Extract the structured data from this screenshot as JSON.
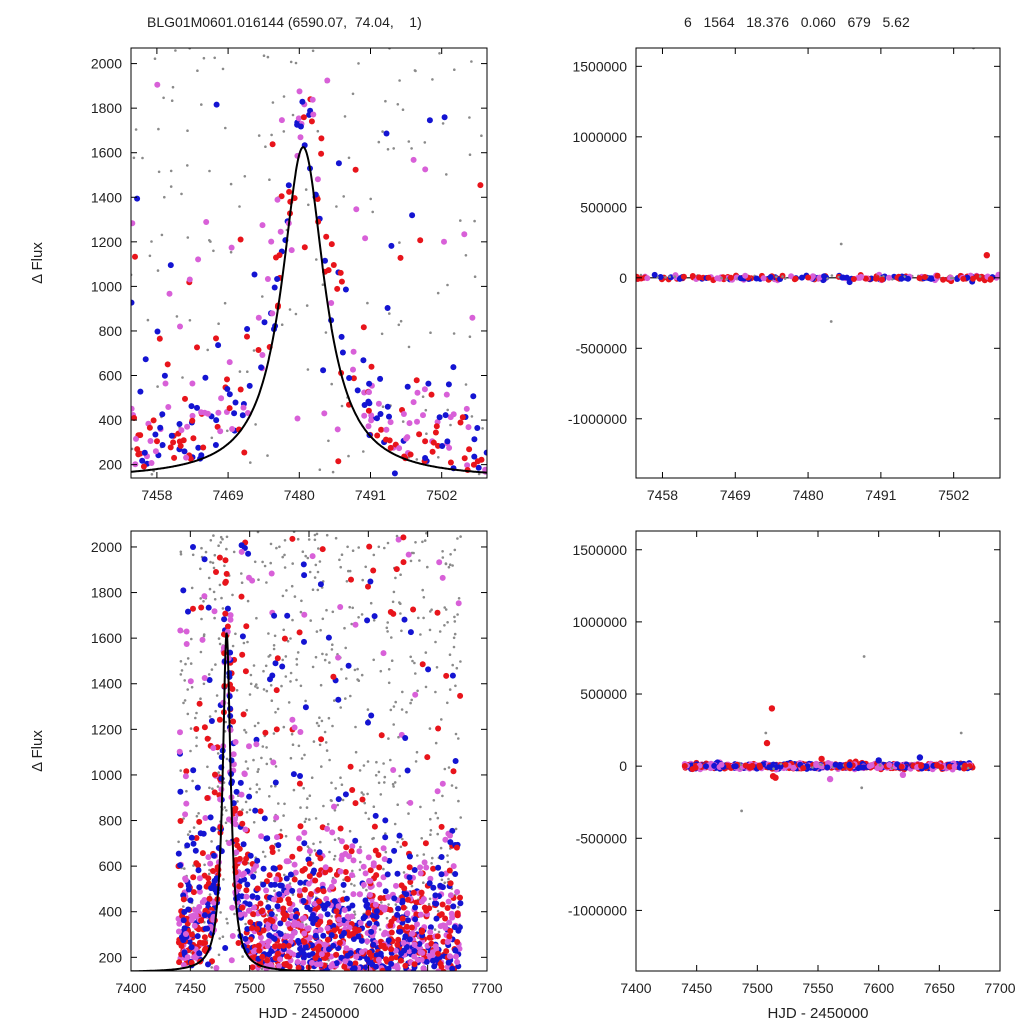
{
  "header": {
    "title_left": "BLG01M0601.016144 (6590.07,  74.04,    1)",
    "title_right": "6   1564   18.376   0.060   679   5.62"
  },
  "colors": {
    "red": "#e8141b",
    "blue": "#1414d2",
    "magenta": "#d860d8",
    "gray": "#8a8a8a",
    "model": "#000000"
  },
  "chart_data": [
    {
      "id": "top-left",
      "type": "scatter",
      "xlim": [
        7454,
        7509
      ],
      "ylim": [
        140,
        2070
      ],
      "xticks": [
        7458,
        7469,
        7480,
        7491,
        7502
      ],
      "yticks": [
        200,
        400,
        600,
        800,
        1000,
        1200,
        1400,
        1600,
        1800,
        2000
      ],
      "ylabel": "Δ Flux",
      "xlabel": "",
      "series": [
        {
          "color": "red",
          "kind": "photometry"
        },
        {
          "color": "blue",
          "kind": "photometry"
        },
        {
          "color": "magenta",
          "kind": "photometry"
        },
        {
          "color": "gray",
          "kind": "photometry"
        }
      ],
      "model": {
        "type": "lorentzian",
        "t0": 7480.6,
        "peak": 1625,
        "base": 135,
        "width": 4.0
      }
    },
    {
      "id": "top-right",
      "type": "scatter",
      "xlim": [
        7454,
        7509
      ],
      "ylim": [
        -1420000,
        1630000
      ],
      "xticks": [
        7458,
        7469,
        7480,
        7491,
        7502
      ],
      "yticks": [
        -1000000,
        -500000,
        0,
        500000,
        1000000,
        1500000
      ],
      "xlabel": "",
      "ylabel": "",
      "outliers": [
        {
          "x": 7507.0,
          "y": 160000,
          "color": "red"
        },
        {
          "x": 7485.0,
          "y": 240000,
          "color": "gray"
        },
        {
          "x": 7483.5,
          "y": -310000,
          "color": "gray"
        },
        {
          "x": 7505.0,
          "y": 1630000,
          "color": "gray"
        }
      ]
    },
    {
      "id": "bottom-left",
      "type": "scatter",
      "xlim": [
        7400,
        7700
      ],
      "ylim": [
        140,
        2070
      ],
      "xticks": [
        7400,
        7450,
        7500,
        7550,
        7600,
        7650,
        7700
      ],
      "yticks": [
        200,
        400,
        600,
        800,
        1000,
        1200,
        1400,
        1600,
        1800,
        2000
      ],
      "ylabel": "Δ Flux",
      "xlabel": "HJD - 2450000",
      "data_range": [
        7440,
        7678
      ],
      "model": {
        "type": "lorentzian",
        "t0": 7480.6,
        "peak": 1625,
        "base": 135,
        "width": 4.0
      }
    },
    {
      "id": "bottom-right",
      "type": "scatter",
      "xlim": [
        7400,
        7700
      ],
      "ylim": [
        -1420000,
        1630000
      ],
      "xticks": [
        7400,
        7450,
        7500,
        7550,
        7600,
        7650,
        7700
      ],
      "yticks": [
        -1000000,
        -500000,
        0,
        500000,
        1000000,
        1500000
      ],
      "xlabel": "HJD - 2450000",
      "ylabel": "",
      "data_range": [
        7440,
        7678
      ],
      "outliers": [
        {
          "x": 7512,
          "y": 400000,
          "color": "red"
        },
        {
          "x": 7508,
          "y": 160000,
          "color": "red"
        },
        {
          "x": 7513,
          "y": -70000,
          "color": "red"
        },
        {
          "x": 7515,
          "y": -80000,
          "color": "red"
        },
        {
          "x": 7507,
          "y": 230000,
          "color": "gray"
        },
        {
          "x": 7487,
          "y": -310000,
          "color": "gray"
        },
        {
          "x": 7588,
          "y": 760000,
          "color": "gray"
        },
        {
          "x": 7586,
          "y": -150000,
          "color": "gray"
        },
        {
          "x": 7668,
          "y": 230000,
          "color": "gray"
        },
        {
          "x": 7553,
          "y": 50000,
          "color": "red"
        },
        {
          "x": 7560,
          "y": -90000,
          "color": "magenta"
        },
        {
          "x": 7634,
          "y": 60000,
          "color": "blue"
        },
        {
          "x": 7620,
          "y": -60000,
          "color": "magenta"
        },
        {
          "x": 7600,
          "y": 40000,
          "color": "blue"
        }
      ]
    }
  ]
}
